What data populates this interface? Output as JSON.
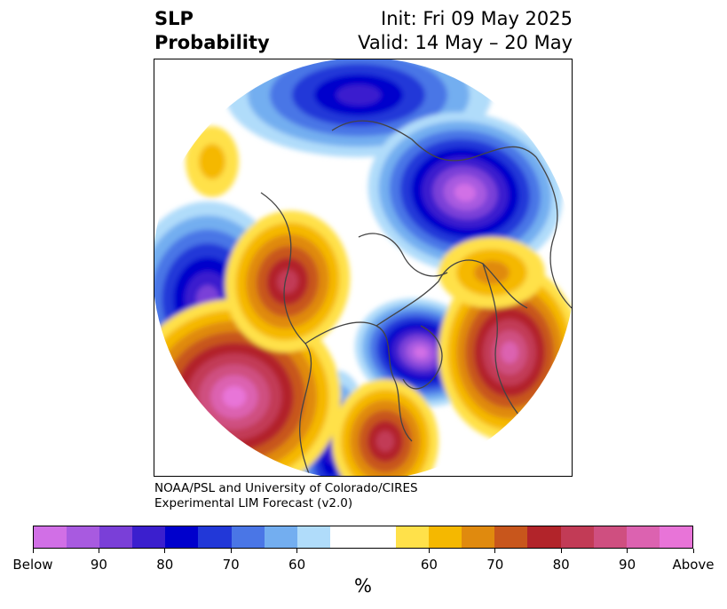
{
  "header": {
    "title_line1": "SLP",
    "title_line2": "Probability",
    "init_text": "Init: Fri 09 May 2025",
    "valid_text": "Valid: 14 May – 20 May"
  },
  "credit": {
    "line1": "NOAA/PSL and University of Colorado/CIRES",
    "line2": "Experimental LIM Forecast (v2.0)"
  },
  "map": {
    "projection": "north-polar-stereographic",
    "variable": "SLP probability",
    "below_colors": [
      "#d16fe6",
      "#a85ae0",
      "#7a3fd8",
      "#3b1fce",
      "#0000cc",
      "#2238d8",
      "#4a76e6",
      "#73aef0",
      "#b0dcfa"
    ],
    "neutral_color": "#ffffff",
    "above_colors": [
      "#ffe14a",
      "#f5b800",
      "#e08a0e",
      "#c8561c",
      "#b2242a",
      "#c23b56",
      "#cf4f80",
      "#dc62b0",
      "#e874d8"
    ],
    "coastline_color": "#444444"
  },
  "colorbar": {
    "colors": [
      "#d16fe6",
      "#a85ae0",
      "#7a3fd8",
      "#3b1fce",
      "#0000cc",
      "#2238d8",
      "#4a76e6",
      "#73aef0",
      "#b0dcfa",
      "#ffffff",
      "#ffffff",
      "#ffe14a",
      "#f5b800",
      "#e08a0e",
      "#c8561c",
      "#b2242a",
      "#c23b56",
      "#cf4f80",
      "#dc62b0",
      "#e874d8"
    ],
    "tick_labels": [
      "Below",
      "90",
      "80",
      "70",
      "60",
      "60",
      "70",
      "80",
      "90",
      "Above"
    ],
    "tick_bins": [
      0,
      2,
      4,
      6,
      8,
      12,
      14,
      16,
      18,
      20
    ],
    "unit": "%"
  }
}
